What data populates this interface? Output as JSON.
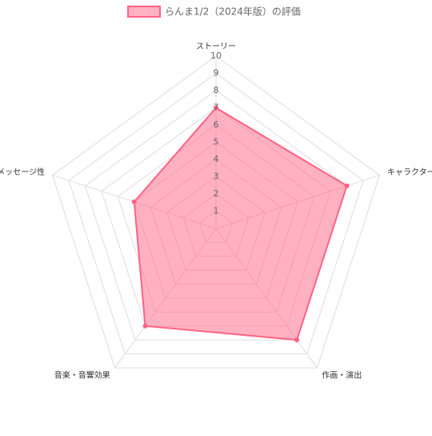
{
  "chart_data": {
    "type": "radar",
    "categories": [
      "ストーリー",
      "キャラクター",
      "作画・演出",
      "音楽・音響効果",
      "メッセージ性"
    ],
    "series": [
      {
        "name": "らんま1/2（2024年版）の評価",
        "color": "#ff6384",
        "values": [
          7,
          8,
          8,
          7,
          5
        ]
      }
    ],
    "rlim": [
      0,
      10
    ],
    "rticks": [
      1,
      2,
      3,
      4,
      5,
      6,
      7,
      8,
      9,
      10
    ],
    "grid": true,
    "legend": "top"
  }
}
